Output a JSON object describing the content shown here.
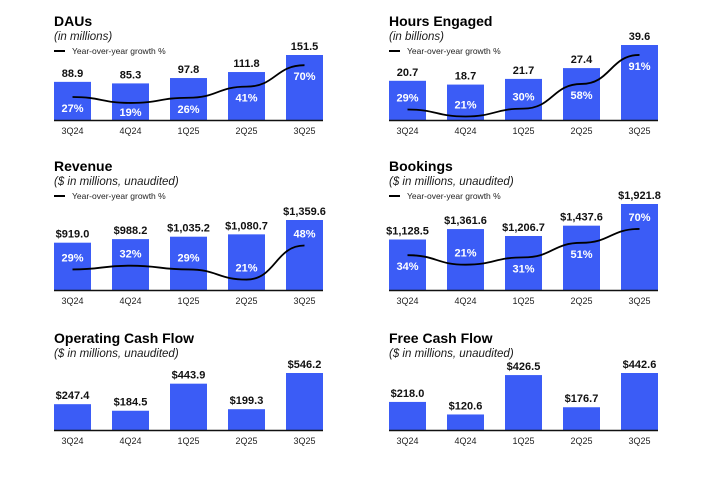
{
  "colors": {
    "bar": "#3b5cf6",
    "line": "#000000",
    "axis": "#111111"
  },
  "legend_label": "Year-over-year growth %",
  "chart_data": [
    {
      "id": "daus",
      "type": "bar",
      "title": "DAUs",
      "subtitle": "(in millions)",
      "has_line": true,
      "categories": [
        "3Q24",
        "4Q24",
        "1Q25",
        "2Q25",
        "3Q25"
      ],
      "values": [
        88.9,
        85.3,
        97.8,
        111.8,
        151.5
      ],
      "labels": [
        "88.9",
        "85.3",
        "97.8",
        "111.8",
        "151.5"
      ],
      "series": [
        {
          "name": "DAUs",
          "values": [
            88.9,
            85.3,
            97.8,
            111.8,
            151.5
          ]
        },
        {
          "name": "Year-over-year growth %",
          "values": [
            27,
            19,
            26,
            41,
            70
          ]
        }
      ],
      "growth_labels": [
        "27%",
        "19%",
        "26%",
        "41%",
        "70%"
      ],
      "growth_range": [
        0,
        100
      ],
      "ylim": [
        0,
        160
      ]
    },
    {
      "id": "hours-engaged",
      "type": "bar",
      "title": "Hours Engaged",
      "subtitle": "(in billions)",
      "has_line": true,
      "categories": [
        "3Q24",
        "4Q24",
        "1Q25",
        "2Q25",
        "3Q25"
      ],
      "values": [
        20.7,
        18.7,
        21.7,
        27.4,
        39.6
      ],
      "labels": [
        "20.7",
        "18.7",
        "21.7",
        "27.4",
        "39.6"
      ],
      "series": [
        {
          "name": "Hours Engaged",
          "values": [
            20.7,
            18.7,
            21.7,
            27.4,
            39.6
          ]
        },
        {
          "name": "Year-over-year growth %",
          "values": [
            29,
            21,
            30,
            58,
            91
          ]
        }
      ],
      "growth_labels": [
        "29%",
        "21%",
        "30%",
        "58%",
        "91%"
      ],
      "growth_range": [
        0,
        100
      ],
      "ylim": [
        0,
        42
      ]
    },
    {
      "id": "revenue",
      "type": "bar",
      "title": "Revenue",
      "subtitle": "($ in millions, unaudited)",
      "has_line": true,
      "categories": [
        "3Q24",
        "4Q24",
        "1Q25",
        "2Q25",
        "3Q25"
      ],
      "values": [
        919.0,
        988.2,
        1035.2,
        1080.7,
        1359.6
      ],
      "labels": [
        "$919.0",
        "$988.2",
        "$1,035.2",
        "$1,080.7",
        "$1,359.6"
      ],
      "series": [
        {
          "name": "Revenue",
          "values": [
            919.0,
            988.2,
            1035.2,
            1080.7,
            1359.6
          ]
        },
        {
          "name": "Year-over-year growth %",
          "values": [
            29,
            32,
            29,
            21,
            48
          ]
        }
      ],
      "growth_labels": [
        "29%",
        "32%",
        "29%",
        "21%",
        "48%"
      ],
      "growth_range": [
        0,
        100
      ],
      "ylim": [
        0,
        1500
      ]
    },
    {
      "id": "bookings",
      "type": "bar",
      "title": "Bookings",
      "subtitle": "($ in millions, unaudited)",
      "has_line": true,
      "categories": [
        "3Q24",
        "4Q24",
        "1Q25",
        "2Q25",
        "3Q25"
      ],
      "values": [
        1128.5,
        1361.6,
        1206.7,
        1437.6,
        1921.8
      ],
      "labels": [
        "$1,128.5",
        "$1,361.6",
        "$1,206.7",
        "$1,437.6",
        "$1,921.8"
      ],
      "series": [
        {
          "name": "Bookings",
          "values": [
            1128.5,
            1361.6,
            1206.7,
            1437.6,
            1921.8
          ]
        },
        {
          "name": "Year-over-year growth %",
          "values": [
            34,
            21,
            31,
            51,
            70
          ]
        }
      ],
      "growth_labels": [
        "34%",
        "21%",
        "31%",
        "51%",
        "70%"
      ],
      "growth_range": [
        0,
        85
      ],
      "ylim": [
        0,
        2000
      ]
    },
    {
      "id": "operating-cash-flow",
      "type": "bar",
      "title": "Operating Cash Flow",
      "subtitle": "($ in millions, unaudited)",
      "has_line": false,
      "categories": [
        "3Q24",
        "4Q24",
        "1Q25",
        "2Q25",
        "3Q25"
      ],
      "values": [
        247.4,
        184.5,
        443.9,
        199.3,
        546.2
      ],
      "labels": [
        "$247.4",
        "$184.5",
        "$443.9",
        "$199.3",
        "$546.2"
      ],
      "ylim": [
        0,
        570
      ]
    },
    {
      "id": "free-cash-flow",
      "type": "bar",
      "title": "Free Cash Flow",
      "subtitle": "($ in millions, unaudited)",
      "has_line": false,
      "categories": [
        "3Q24",
        "4Q24",
        "1Q25",
        "2Q25",
        "3Q25"
      ],
      "values": [
        218.0,
        120.6,
        426.5,
        176.7,
        442.6
      ],
      "labels": [
        "$218.0",
        "$120.6",
        "$426.5",
        "$176.7",
        "$442.6"
      ],
      "ylim": [
        0,
        570
      ]
    }
  ]
}
